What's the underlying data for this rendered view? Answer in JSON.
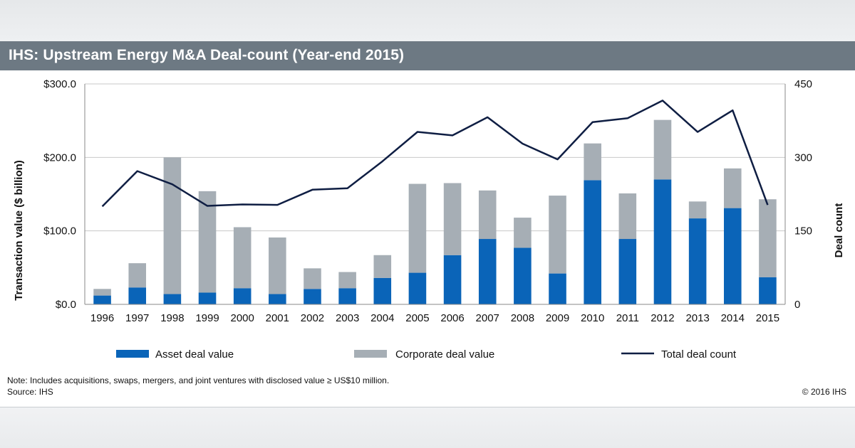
{
  "title": "IHS: Upstream Energy M&A Deal-count (Year-end 2015)",
  "note": "Note: Includes acquisitions, swaps, mergers, and joint ventures with disclosed value ≥ US$10 million.",
  "source": "Source: IHS",
  "copyright": "© 2016 IHS",
  "colors": {
    "asset": "#0a64b8",
    "corporate": "#a6aeb5",
    "line": "#0f1e43",
    "header": "#6d7983"
  },
  "chart_data": {
    "type": "bar",
    "stacked": true,
    "categories": [
      "1996",
      "1997",
      "1998",
      "1999",
      "2000",
      "2001",
      "2002",
      "2003",
      "2004",
      "2005",
      "2006",
      "2007",
      "2008",
      "2009",
      "2010",
      "2011",
      "2012",
      "2013",
      "2014",
      "2015"
    ],
    "series": [
      {
        "name": "Asset deal value",
        "axis": "left",
        "values": [
          12,
          23,
          14,
          16,
          22,
          14,
          21,
          22,
          36,
          43,
          67,
          89,
          77,
          42,
          169,
          89,
          170,
          117,
          131,
          37
        ]
      },
      {
        "name": "Corporate deal value",
        "axis": "left",
        "values": [
          9,
          33,
          186,
          138,
          83,
          77,
          28,
          22,
          31,
          121,
          98,
          66,
          41,
          106,
          50,
          62,
          81,
          23,
          54,
          106
        ]
      },
      {
        "name": "Total deal count",
        "axis": "right",
        "type": "line",
        "values": [
          200,
          272,
          245,
          201,
          204,
          203,
          234,
          237,
          292,
          352,
          345,
          382,
          328,
          296,
          372,
          380,
          416,
          352,
          396,
          203
        ]
      }
    ],
    "ylabel": "Transaction value ($ billion)",
    "y2label": "Deal count",
    "ylim": [
      0,
      300
    ],
    "y2lim": [
      0,
      450
    ],
    "yticks": [
      "$0.0",
      "$100.0",
      "$200.0",
      "$300.0"
    ],
    "y2ticks": [
      "0",
      "150",
      "300",
      "450"
    ],
    "legend": [
      "Asset deal value",
      "Corporate deal value",
      "Total deal count"
    ],
    "legend_position": "bottom",
    "grid": "horizontal"
  }
}
